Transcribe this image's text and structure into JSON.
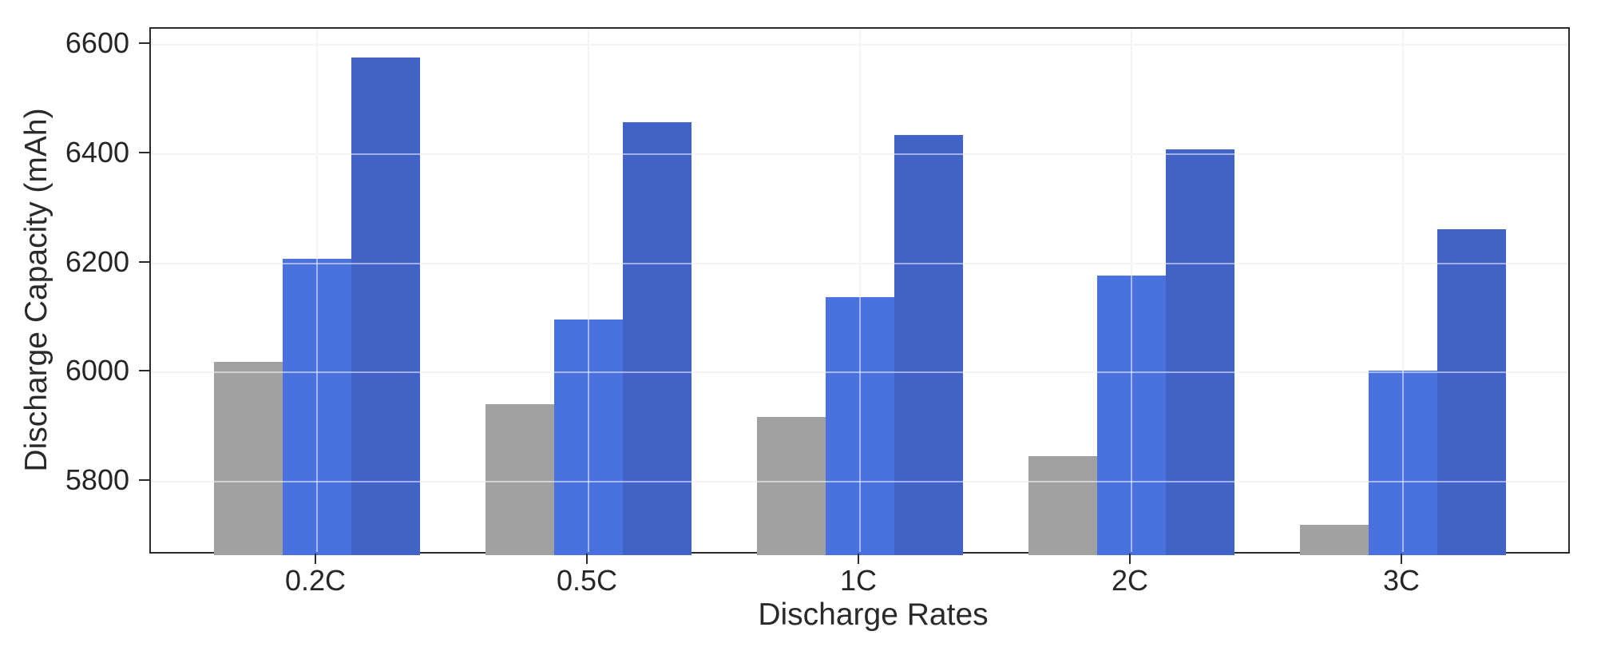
{
  "figure": {
    "background": "#ffffff",
    "text_color": "#262626",
    "spine_color": "#2b2b2b",
    "grid_color": "#e9e9e9",
    "grid_overlay_color": "rgba(255,255,255,0.5)"
  },
  "chart_data": {
    "type": "bar",
    "title": "",
    "xlabel": "Discharge Rates",
    "ylabel": "Discharge Capacity (mAh)",
    "categories": [
      "0.2C",
      "0.5C",
      "1C",
      "2C",
      "3C"
    ],
    "series": [
      {
        "name": "gray",
        "color": "#a1a1a1",
        "values": [
          6020,
          5942,
          5918,
          5847,
          5720
        ]
      },
      {
        "name": "medium-blue",
        "color": "#4a72de",
        "values": [
          6209,
          6097,
          6138,
          6177,
          6003
        ]
      },
      {
        "name": "dark-blue",
        "color": "#4263c6",
        "values": [
          6578,
          6459,
          6435,
          6409,
          6263
        ]
      }
    ],
    "ylim": [
      5665,
      6630
    ],
    "yticks": [
      5800,
      6000,
      6200,
      6400,
      6600
    ],
    "grid": true,
    "grid_drawn_over_bars": true,
    "legend": false
  }
}
